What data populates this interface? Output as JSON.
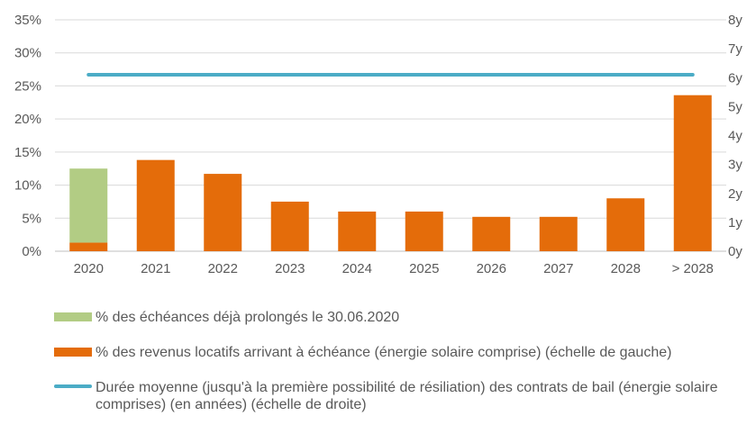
{
  "chart_data": {
    "type": "bar",
    "categories": [
      "2020",
      "2021",
      "2022",
      "2023",
      "2024",
      "2025",
      "2026",
      "2027",
      "2028",
      "> 2028"
    ],
    "series": [
      {
        "name": "% des revenus locatifs arrivant à échéance (énergie solaire comprise) (échelle de gauche)",
        "axis": "left",
        "kind": "bar",
        "color": "#E46C0A",
        "values": [
          1.3,
          13.8,
          11.7,
          7.5,
          6.0,
          6.0,
          5.2,
          5.2,
          8.0,
          23.6
        ]
      },
      {
        "name": "% des échéances déjà prolongés le 30.06.2020",
        "axis": "left",
        "kind": "bar-stacked",
        "color": "#B2CC84",
        "values": [
          11.2,
          0,
          0,
          0,
          0,
          0,
          0,
          0,
          0,
          0
        ]
      },
      {
        "name": "Durée moyenne (jusqu'à la première possibilité de résiliation) des contrats de bail (énergie solaire comprises) (en années) (échelle de droite)",
        "axis": "right",
        "kind": "line",
        "color": "#4BACC6",
        "values": [
          6.1,
          6.1,
          6.1,
          6.1,
          6.1,
          6.1,
          6.1,
          6.1,
          6.1,
          6.1
        ]
      }
    ],
    "left_axis": {
      "ylim": [
        0,
        35
      ],
      "ticks": [
        0,
        5,
        10,
        15,
        20,
        25,
        30,
        35
      ],
      "tick_labels": [
        "0%",
        "5%",
        "10%",
        "15%",
        "20%",
        "25%",
        "30%",
        "35%"
      ]
    },
    "right_axis": {
      "ylim": [
        0,
        8
      ],
      "ticks": [
        0,
        1,
        2,
        3,
        4,
        5,
        6,
        7,
        8
      ],
      "tick_labels": [
        "0y",
        "1y",
        "2y",
        "3y",
        "4y",
        "5y",
        "6y",
        "7y",
        "8y"
      ]
    },
    "grid": true,
    "legend_position": "bottom"
  },
  "legend": [
    {
      "label": "% des échéances déjà prolongés le 30.06.2020",
      "color": "#B2CC84",
      "kind": "box"
    },
    {
      "label": "% des revenus locatifs arrivant à échéance (énergie solaire comprise) (échelle de gauche)",
      "color": "#E46C0A",
      "kind": "box"
    },
    {
      "label": "Durée moyenne (jusqu'à la première possibilité de résiliation) des contrats de bail (énergie solaire comprises) (en années) (échelle de droite)",
      "color": "#4BACC6",
      "kind": "line"
    }
  ]
}
